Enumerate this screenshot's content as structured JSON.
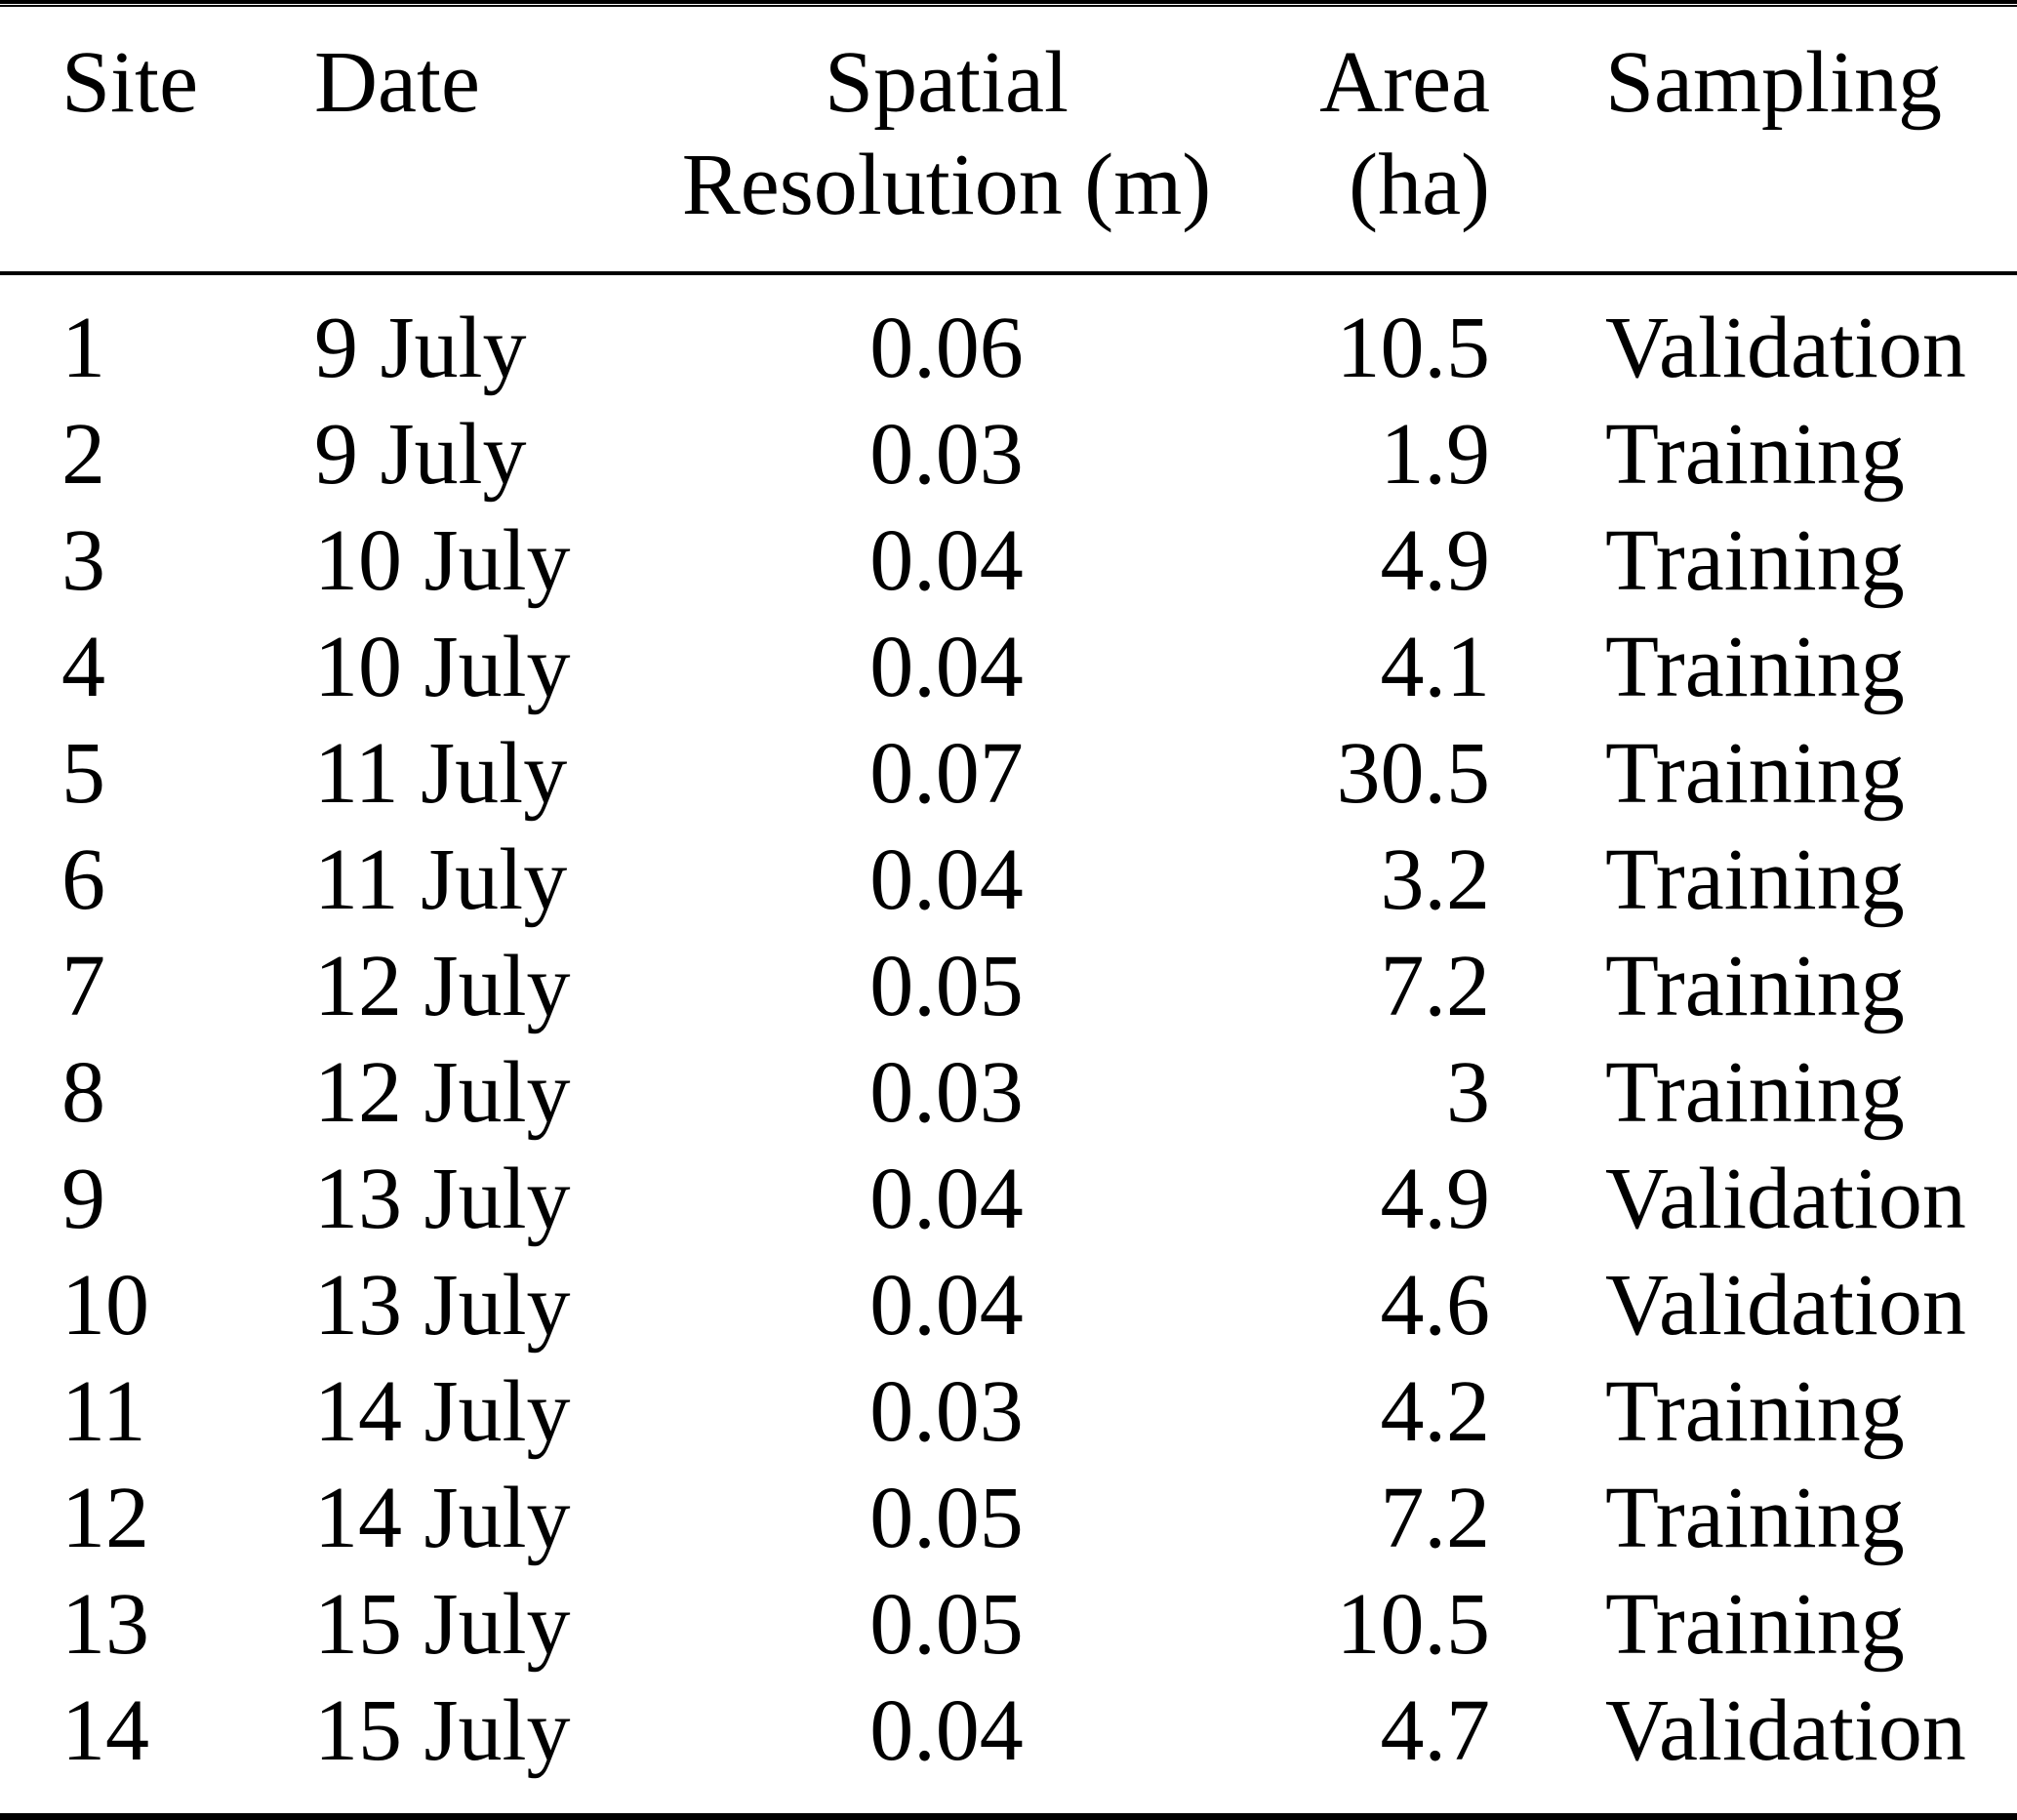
{
  "colors": {
    "text": "#000000",
    "background": "#ffffff",
    "rule": "#000000"
  },
  "table": {
    "header": {
      "site": "Site",
      "date": "Date",
      "spatial_line1": "Spatial",
      "spatial_line2": "Resolution (m)",
      "area_line1": "Area",
      "area_line2": "(ha)",
      "sampling": "Sampling"
    },
    "rows": [
      {
        "site": "1",
        "date": "9 July",
        "resolution": "0.06",
        "area": "10.5",
        "sampling": "Validation"
      },
      {
        "site": "2",
        "date": "9 July",
        "resolution": "0.03",
        "area": "1.9",
        "sampling": "Training"
      },
      {
        "site": "3",
        "date": "10 July",
        "resolution": "0.04",
        "area": "4.9",
        "sampling": "Training"
      },
      {
        "site": "4",
        "date": "10 July",
        "resolution": "0.04",
        "area": "4.1",
        "sampling": "Training"
      },
      {
        "site": "5",
        "date": "11 July",
        "resolution": "0.07",
        "area": "30.5",
        "sampling": "Training"
      },
      {
        "site": "6",
        "date": "11 July",
        "resolution": "0.04",
        "area": "3.2",
        "sampling": "Training"
      },
      {
        "site": "7",
        "date": "12 July",
        "resolution": "0.05",
        "area": "7.2",
        "sampling": "Training"
      },
      {
        "site": "8",
        "date": "12 July",
        "resolution": "0.03",
        "area": "3",
        "sampling": "Training"
      },
      {
        "site": "9",
        "date": "13 July",
        "resolution": "0.04",
        "area": "4.9",
        "sampling": "Validation"
      },
      {
        "site": "10",
        "date": "13 July",
        "resolution": "0.04",
        "area": "4.6",
        "sampling": "Validation"
      },
      {
        "site": "11",
        "date": "14 July",
        "resolution": "0.03",
        "area": "4.2",
        "sampling": "Training"
      },
      {
        "site": "12",
        "date": "14 July",
        "resolution": "0.05",
        "area": "7.2",
        "sampling": "Training"
      },
      {
        "site": "13",
        "date": "15 July",
        "resolution": "0.05",
        "area": "10.5",
        "sampling": "Training"
      },
      {
        "site": "14",
        "date": "15 July",
        "resolution": "0.04",
        "area": "4.7",
        "sampling": "Validation"
      }
    ]
  }
}
